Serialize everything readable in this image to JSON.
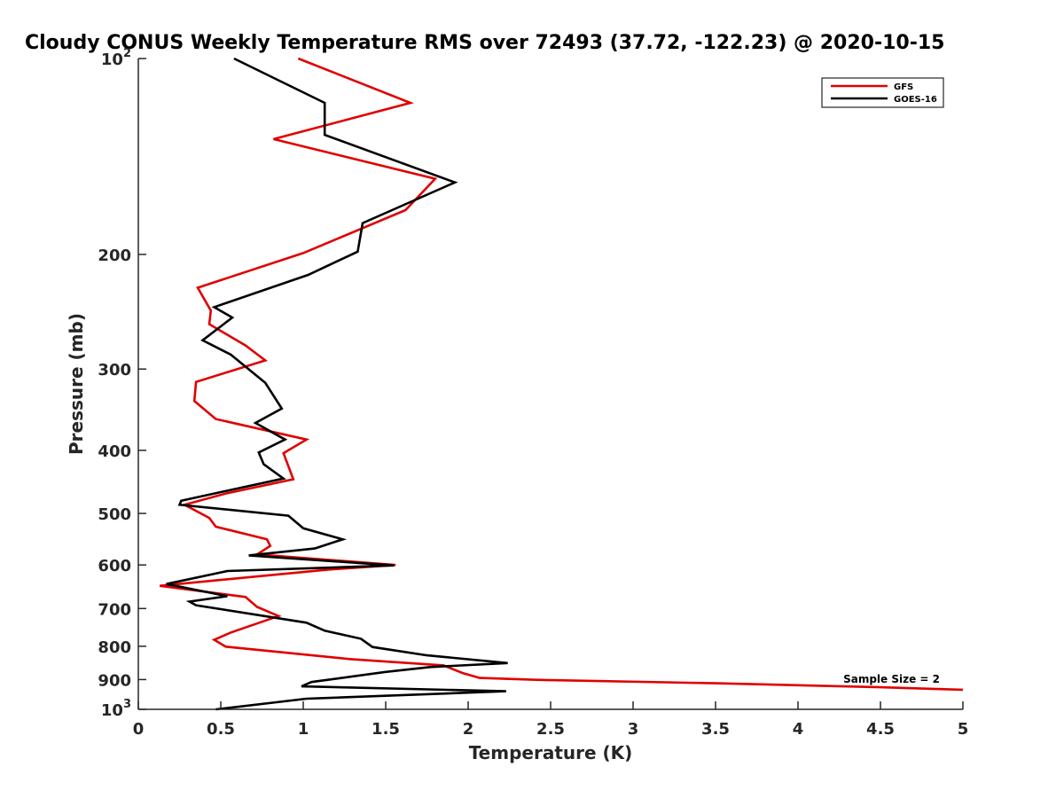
{
  "chart_data": {
    "type": "line",
    "title": "Cloudy CONUS Weekly Temperature RMS over 72493 (37.72, -122.23) @ 2020-10-15",
    "xlabel": "Temperature (K)",
    "ylabel": "Pressure (mb)",
    "xlim": [
      0,
      5
    ],
    "ylim": [
      100,
      1000
    ],
    "y_scale": "log",
    "y_reversed": true,
    "x_ticks": [
      {
        "value": 0,
        "label": "0"
      },
      {
        "value": 0.5,
        "label": "0.5"
      },
      {
        "value": 1,
        "label": "1"
      },
      {
        "value": 1.5,
        "label": "1.5"
      },
      {
        "value": 2,
        "label": "2"
      },
      {
        "value": 2.5,
        "label": "2.5"
      },
      {
        "value": 3,
        "label": "3"
      },
      {
        "value": 3.5,
        "label": "3.5"
      },
      {
        "value": 4,
        "label": "4"
      },
      {
        "value": 4.5,
        "label": "4.5"
      },
      {
        "value": 5,
        "label": "5"
      }
    ],
    "y_ticks": [
      {
        "value": 100,
        "base": "10",
        "exp": "2"
      },
      {
        "value": 200,
        "base": "200",
        "exp": ""
      },
      {
        "value": 300,
        "base": "300",
        "exp": ""
      },
      {
        "value": 400,
        "base": "400",
        "exp": ""
      },
      {
        "value": 500,
        "base": "500",
        "exp": ""
      },
      {
        "value": 600,
        "base": "600",
        "exp": ""
      },
      {
        "value": 700,
        "base": "700",
        "exp": ""
      },
      {
        "value": 800,
        "base": "800",
        "exp": ""
      },
      {
        "value": 900,
        "base": "900",
        "exp": ""
      },
      {
        "value": 1000,
        "base": "10",
        "exp": "3"
      }
    ],
    "grid": false,
    "legend_position": "top-right",
    "annotation": "Sample Size = 2",
    "series": [
      {
        "name": "GFS",
        "color": "#e00000",
        "points": [
          [
            0.97,
            100
          ],
          [
            1.65,
            117
          ],
          [
            0.82,
            133
          ],
          [
            1.8,
            153
          ],
          [
            1.62,
            171
          ],
          [
            1.0,
            199
          ],
          [
            0.36,
            225
          ],
          [
            0.44,
            244
          ],
          [
            0.43,
            256
          ],
          [
            0.65,
            276
          ],
          [
            0.77,
            291
          ],
          [
            0.35,
            314
          ],
          [
            0.34,
            336
          ],
          [
            0.47,
            358
          ],
          [
            1.02,
            385
          ],
          [
            0.88,
            404
          ],
          [
            0.94,
            443
          ],
          [
            0.53,
            466
          ],
          [
            0.28,
            485
          ],
          [
            0.43,
            508
          ],
          [
            0.47,
            524
          ],
          [
            0.78,
            548
          ],
          [
            0.8,
            561
          ],
          [
            0.72,
            578
          ],
          [
            1.56,
            600
          ],
          [
            1.15,
            610
          ],
          [
            0.13,
            646
          ],
          [
            0.65,
            672
          ],
          [
            0.72,
            696
          ],
          [
            0.85,
            719
          ],
          [
            0.56,
            762
          ],
          [
            0.46,
            782
          ],
          [
            0.53,
            801
          ],
          [
            1.28,
            837
          ],
          [
            1.85,
            856
          ],
          [
            1.97,
            880
          ],
          [
            2.07,
            895
          ],
          [
            2.43,
            901
          ],
          [
            3.5,
            912
          ],
          [
            4.5,
            925
          ],
          [
            5.0,
            933
          ]
        ]
      },
      {
        "name": "GOES-16",
        "color": "#000000",
        "points": [
          [
            0.58,
            100
          ],
          [
            1.13,
            117
          ],
          [
            1.13,
            131
          ],
          [
            1.92,
            155
          ],
          [
            1.36,
            179
          ],
          [
            1.33,
            198
          ],
          [
            1.03,
            215
          ],
          [
            0.46,
            241
          ],
          [
            0.57,
            250
          ],
          [
            0.39,
            271
          ],
          [
            0.56,
            285
          ],
          [
            0.77,
            315
          ],
          [
            0.87,
            345
          ],
          [
            0.71,
            363
          ],
          [
            0.89,
            385
          ],
          [
            0.73,
            403
          ],
          [
            0.76,
            420
          ],
          [
            0.88,
            442
          ],
          [
            0.26,
            478
          ],
          [
            0.25,
            485
          ],
          [
            0.91,
            504
          ],
          [
            1.0,
            527
          ],
          [
            1.24,
            548
          ],
          [
            1.07,
            566
          ],
          [
            0.67,
            580
          ],
          [
            1.55,
            601
          ],
          [
            0.54,
            613
          ],
          [
            0.17,
            642
          ],
          [
            0.54,
            670
          ],
          [
            0.31,
            683
          ],
          [
            0.35,
            692
          ],
          [
            1.02,
            736
          ],
          [
            1.13,
            757
          ],
          [
            1.35,
            779
          ],
          [
            1.42,
            802
          ],
          [
            1.75,
            826
          ],
          [
            2.24,
            849
          ],
          [
            1.77,
            861
          ],
          [
            1.5,
            876
          ],
          [
            1.05,
            908
          ],
          [
            0.99,
            922
          ],
          [
            2.23,
            938
          ],
          [
            1.02,
            963
          ],
          [
            0.47,
            1000
          ]
        ]
      }
    ]
  }
}
